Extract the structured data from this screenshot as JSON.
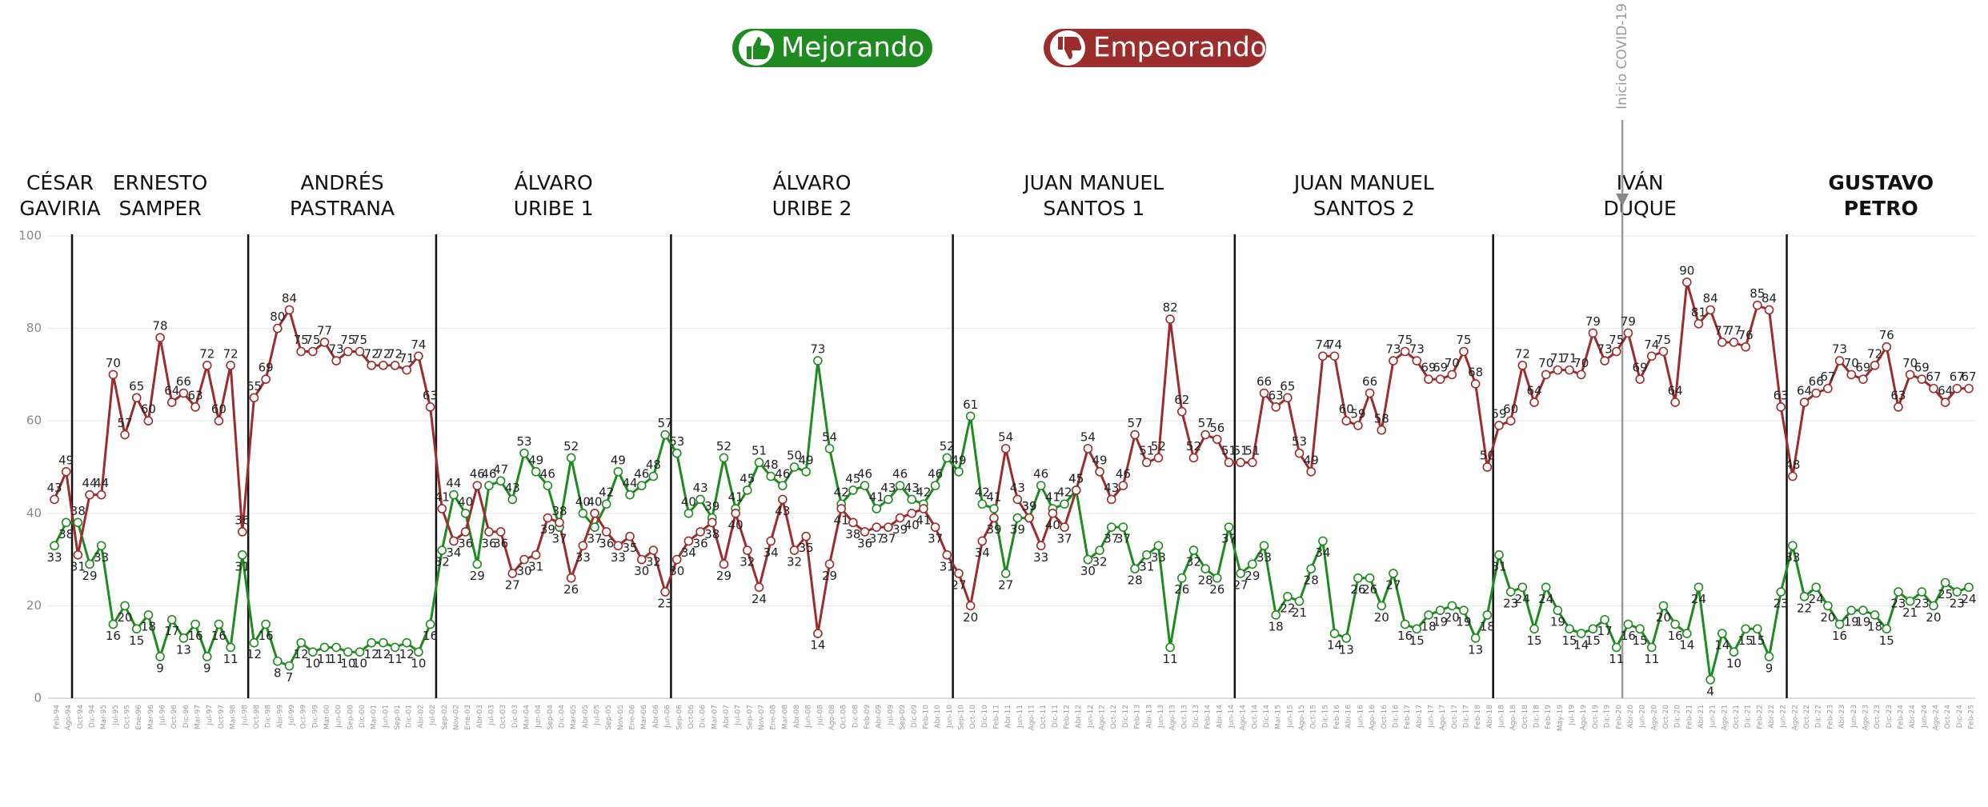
{
  "chart_data": {
    "type": "line",
    "ylim": [
      0,
      100
    ],
    "yticks": [
      0,
      20,
      40,
      60,
      80,
      100
    ],
    "grid": true,
    "categories": [
      "Feb-94",
      "Ago-94",
      "Oct-94",
      "Dic-94",
      "Mar-95",
      "Jul-95",
      "Oct-95",
      "Ene-96",
      "Mar-96",
      "Jul-96",
      "Oct-96",
      "Dic-96",
      "Mar-97",
      "Jul-97",
      "Oct-97",
      "Mar-98",
      "Jul-98",
      "Oct-98",
      "Dic-98",
      "Abr-99",
      "Jul-99",
      "Oct-99",
      "Dic-99",
      "Mar-00",
      "Jun-00",
      "Sep-00",
      "Dic-00",
      "Mar-01",
      "Jun-01",
      "Sep-01",
      "Dic-01",
      "Abr-02",
      "Jul-02",
      "Sep-02",
      "Nov-02",
      "Ene-03",
      "Abr-03",
      "Jul-03",
      "Oct-03",
      "Dic-03",
      "Mar-04",
      "Jun-04",
      "Sep-04",
      "Dic-04",
      "Mar-05",
      "Abr-05",
      "Jul-05",
      "Sep-05",
      "Nov-05",
      "Ene-06",
      "Mar-06",
      "Abr-06",
      "Jun-06",
      "Sep-06",
      "Oct-06",
      "Dic-06",
      "Mar-07",
      "Abr-07",
      "Jul-07",
      "Sep-07",
      "Nov-07",
      "Ene-08",
      "Mar-08",
      "Abr-08",
      "Jun-08",
      "Jul-08",
      "Ago-08",
      "Oct-08",
      "Dic-08",
      "Feb-09",
      "Abr-09",
      "Jul-09",
      "Sep-09",
      "Dic-09",
      "Feb-10",
      "Abr-10",
      "Jun-10",
      "Sep-10",
      "Oct-10",
      "Dic-10",
      "Feb-11",
      "Abr-11",
      "Jun-11",
      "Ago-11",
      "Oct-11",
      "Dic-11",
      "Feb-12",
      "Abr-12",
      "Jun-12",
      "Ago-12",
      "Oct-12",
      "Dic-12",
      "Feb-13",
      "Abr-13",
      "Jun-13",
      "Ago-13",
      "Oct-13",
      "Dic-13",
      "Feb-14",
      "Abr-14",
      "Jun-14",
      "Ago-14",
      "Oct-14",
      "Dic-14",
      "Mar-15",
      "Jun-15",
      "Ago-15",
      "Oct-15",
      "Dic-15",
      "Feb-16",
      "Abr-16",
      "Jun-16",
      "Ago-16",
      "Oct-16",
      "Dic-16",
      "Feb-17",
      "Abr-17",
      "Jun-17",
      "Ago-17",
      "Oct-17",
      "Dic-17",
      "Feb-18",
      "Abr-18",
      "Jun-18",
      "Ago-18",
      "Oct-18",
      "Dic-18",
      "Feb-19",
      "May-19",
      "Jul-19",
      "Ago-19",
      "Oct-19",
      "Dic-19",
      "Feb-20",
      "Abr-20",
      "Jun-20",
      "Ago-20",
      "Oct-20",
      "Dic-20",
      "Feb-21",
      "Abr-21",
      "Jun-21",
      "Ago-21",
      "Oct-21",
      "Dic-21",
      "Feb-22",
      "Abr-22",
      "Jun-22",
      "Ago-22",
      "Oct-22",
      "Dic-22",
      "Feb-23",
      "Abr-23",
      "Jun-23",
      "Ago-23",
      "Oct-23",
      "Dic-23",
      "Feb-24",
      "Abr-24",
      "Jun-24",
      "Ago-24",
      "Oct-24",
      "Dic-24",
      "Feb-25"
    ],
    "series": [
      {
        "name": "Mejorando",
        "color": "#1f8a1f",
        "values": [
          33,
          38,
          38,
          29,
          33,
          16,
          20,
          15,
          18,
          9,
          17,
          13,
          16,
          9,
          16,
          11,
          31,
          12,
          16,
          8,
          7,
          12,
          10,
          11,
          11,
          10,
          10,
          12,
          12,
          11,
          12,
          10,
          16,
          32,
          44,
          40,
          29,
          46,
          47,
          43,
          53,
          49,
          46,
          37,
          52,
          40,
          37,
          42,
          49,
          44,
          46,
          48,
          57,
          53,
          40,
          43,
          39,
          52,
          41,
          45,
          51,
          48,
          46,
          50,
          49,
          73,
          54,
          42,
          45,
          46,
          41,
          43,
          46,
          43,
          42,
          46,
          52,
          49,
          61,
          42,
          41,
          27,
          39,
          39,
          46,
          41,
          42,
          45,
          30,
          32,
          37,
          37,
          28,
          31,
          33,
          11,
          26,
          32,
          28,
          26,
          37,
          27,
          29,
          33,
          18,
          22,
          21,
          28,
          34,
          14,
          13,
          26,
          26,
          20,
          27,
          16,
          15,
          18,
          19,
          20,
          19,
          13,
          18,
          31,
          23,
          24,
          15,
          24,
          19,
          15,
          14,
          15,
          17,
          11,
          16,
          15,
          11,
          20,
          16,
          14,
          24,
          4,
          14,
          10,
          15,
          15,
          9,
          23,
          33,
          22,
          24,
          20,
          16,
          19,
          19,
          18,
          15,
          23,
          21,
          23,
          20,
          25,
          23,
          24
        ]
      },
      {
        "name": "Empeorando",
        "color": "#9b2d2d",
        "values": [
          43,
          49,
          31,
          44,
          44,
          70,
          57,
          65,
          60,
          78,
          64,
          66,
          63,
          72,
          60,
          72,
          36,
          65,
          69,
          80,
          84,
          75,
          75,
          77,
          73,
          75,
          75,
          72,
          72,
          72,
          71,
          74,
          63,
          41,
          34,
          36,
          46,
          36,
          36,
          27,
          30,
          31,
          39,
          38,
          26,
          33,
          40,
          36,
          33,
          35,
          30,
          32,
          23,
          30,
          34,
          36,
          38,
          29,
          40,
          32,
          24,
          34,
          43,
          32,
          35,
          14,
          29,
          41,
          38,
          36,
          37,
          37,
          39,
          40,
          41,
          37,
          31,
          27,
          20,
          34,
          39,
          54,
          43,
          39,
          33,
          40,
          37,
          45,
          54,
          49,
          43,
          46,
          57,
          51,
          52,
          82,
          62,
          52,
          57,
          56,
          51,
          51,
          51,
          66,
          63,
          65,
          53,
          49,
          74,
          74,
          60,
          59,
          66,
          58,
          73,
          75,
          73,
          69,
          69,
          70,
          75,
          68,
          50,
          59,
          60,
          72,
          64,
          70,
          71,
          71,
          70,
          79,
          73,
          75,
          79,
          69,
          74,
          75,
          64,
          90,
          81,
          84,
          77,
          77,
          76,
          85,
          84,
          63,
          48,
          64,
          66,
          67,
          73,
          70,
          69,
          72,
          76,
          63,
          70,
          69,
          67,
          64,
          67,
          67
        ]
      }
    ],
    "eras": [
      {
        "name": [
          "CÉSAR",
          "GAVIRIA"
        ],
        "start": "Feb-94"
      },
      {
        "name": [
          "ERNESTO",
          "SAMPER"
        ],
        "start": "Oct-94"
      },
      {
        "name": [
          "ANDRÉS",
          "PASTRANA"
        ],
        "start": "Oct-98"
      },
      {
        "name": [
          "ÁLVARO",
          "URIBE 1"
        ],
        "start": "Sep-02"
      },
      {
        "name": [
          "ÁLVARO",
          "URIBE 2"
        ],
        "start": "Sep-06"
      },
      {
        "name": [
          "JUAN MANUEL",
          "SANTOS 1"
        ],
        "start": "Sep-10"
      },
      {
        "name": [
          "JUAN MANUEL",
          "SANTOS 2"
        ],
        "start": "Ago-14"
      },
      {
        "name": [
          "IVÁN",
          "DUQUE"
        ],
        "start": "Jun-18"
      },
      {
        "name": [
          "GUSTAVO",
          "PETRO"
        ],
        "start": "Ago-22",
        "bold": true
      }
    ],
    "annotation": {
      "text": "Inicio COVID-19",
      "at": "Abr-20"
    }
  }
}
